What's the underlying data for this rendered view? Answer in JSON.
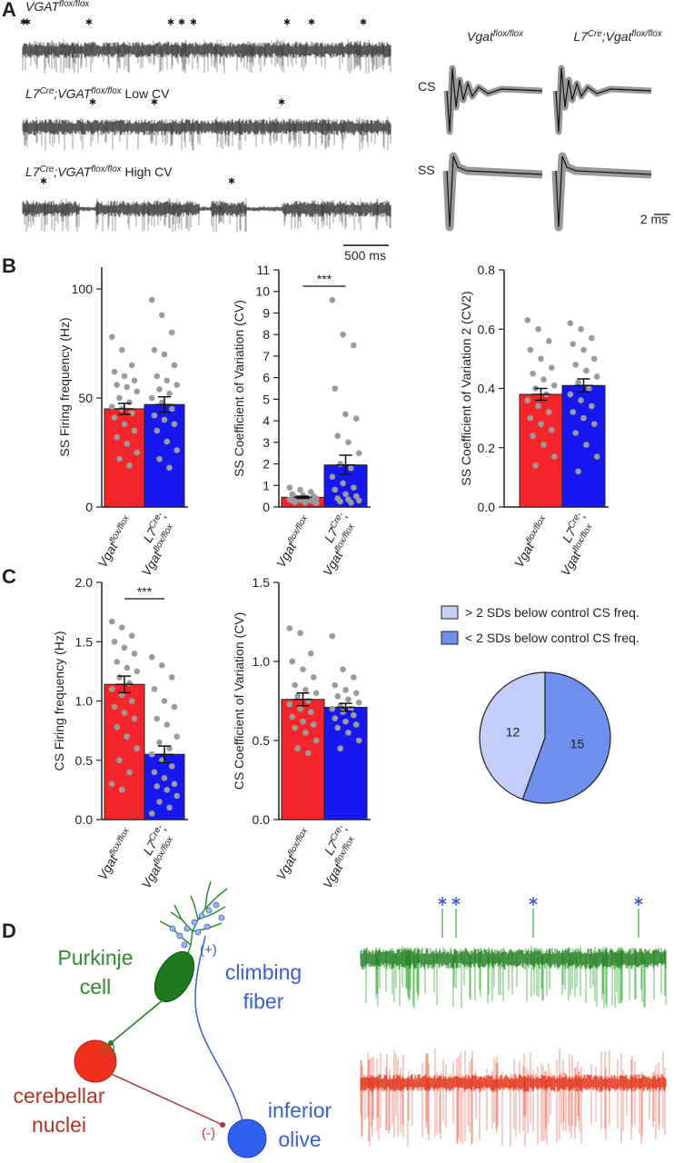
{
  "panel_a": {
    "label": "A",
    "traces": [
      {
        "label": [
          {
            "text": "VGAT",
            "italic": true
          },
          {
            "text": "flox/flox",
            "italic": true,
            "sup": true
          }
        ]
      },
      {
        "label": [
          {
            "text": "L7",
            "italic": true
          },
          {
            "text": "Cre",
            "italic": true,
            "sup": true
          },
          {
            "text": ";VGAT",
            "italic": true
          },
          {
            "text": "flox/flox",
            "italic": true,
            "sup": true
          },
          {
            "text": " Low CV"
          }
        ]
      },
      {
        "label": [
          {
            "text": "L7",
            "italic": true
          },
          {
            "text": "Cre",
            "italic": true,
            "sup": true
          },
          {
            "text": ";VGAT",
            "italic": true
          },
          {
            "text": "flox/flox",
            "italic": true,
            "sup": true
          },
          {
            "text": " High CV"
          }
        ]
      }
    ],
    "scale_bar": "500 ms",
    "waveform_columns": [
      [
        {
          "text": "Vgat",
          "italic": true
        },
        {
          "text": "flox/flox",
          "italic": true,
          "sup": true
        }
      ],
      [
        {
          "text": "L7",
          "italic": true
        },
        {
          "text": "Cre",
          "italic": true,
          "sup": true
        },
        {
          "text": ";Vgat",
          "italic": true
        },
        {
          "text": "flox/flox",
          "italic": true,
          "sup": true
        }
      ]
    ],
    "waveform_rows": [
      "CS",
      "SS"
    ],
    "waveform_scale_bar": "2 ms"
  },
  "panel_labels": {
    "b": "B",
    "c": "C",
    "d": "D"
  },
  "chart_data": [
    {
      "type": "bar",
      "ylabel": "SS Firing frequency (Hz)",
      "categories": [
        [
          [
            {
              "text": "Vgat",
              "italic": true
            },
            {
              "text": "flox/flox",
              "italic": true,
              "sup": true
            }
          ]
        ],
        [
          [
            {
              "text": "L7",
              "italic": true
            },
            {
              "text": "Cre",
              "italic": true,
              "sup": true
            },
            {
              "text": ";"
            }
          ],
          [
            {
              "text": "Vgat",
              "italic": true
            },
            {
              "text": "flox/flox",
              "italic": true,
              "sup": true
            }
          ]
        ]
      ],
      "values": [
        45,
        47
      ],
      "errors": [
        2.5,
        3.5
      ],
      "colors": [
        "#f5262b",
        "#1717f2"
      ],
      "points": [
        [
          78,
          72,
          65,
          62,
          60,
          58,
          56,
          55,
          53,
          50,
          48,
          46,
          45,
          43,
          41,
          38,
          35,
          32,
          29,
          25,
          22,
          19
        ],
        [
          95,
          88,
          80,
          72,
          70,
          65,
          60,
          58,
          56,
          54,
          52,
          50,
          48,
          45,
          42,
          40,
          38,
          35,
          30,
          26,
          22,
          18
        ]
      ],
      "ylim": [
        0,
        110
      ],
      "yticks": [
        0,
        50,
        100
      ]
    },
    {
      "type": "bar",
      "ylabel": "SS Coefficient of Variation (CV)",
      "categories": [
        [
          [
            {
              "text": "Vgat",
              "italic": true
            },
            {
              "text": "flox/flox",
              "italic": true,
              "sup": true
            }
          ]
        ],
        [
          [
            {
              "text": "L7",
              "italic": true
            },
            {
              "text": "Cre",
              "italic": true,
              "sup": true
            },
            {
              "text": ";"
            }
          ],
          [
            {
              "text": "Vgat",
              "italic": true
            },
            {
              "text": "flox/flox",
              "italic": true,
              "sup": true
            }
          ]
        ]
      ],
      "values": [
        0.45,
        1.95
      ],
      "errors": [
        0.05,
        0.45
      ],
      "colors": [
        "#f5262b",
        "#1717f2"
      ],
      "points": [
        [
          0.9,
          0.8,
          0.7,
          0.6,
          0.55,
          0.5,
          0.45,
          0.42,
          0.4,
          0.38,
          0.36,
          0.35,
          0.33,
          0.3,
          0.3,
          0.28,
          0.25,
          0.22,
          0.2,
          0.18
        ],
        [
          9.6,
          8,
          7.5,
          5.5,
          4.3,
          4.1,
          3.3,
          3,
          2.5,
          2,
          1.8,
          1.4,
          1.1,
          0.9,
          0.8,
          0.6,
          0.5,
          0.4,
          0.35,
          0.3,
          0.25,
          0.2
        ]
      ],
      "ylim": [
        0,
        11
      ],
      "yticks": [
        0,
        1,
        2,
        3,
        4,
        5,
        6,
        7,
        8,
        9,
        10,
        11
      ],
      "significance": "***"
    },
    {
      "type": "bar",
      "ylabel": "SS Coefficient of Variation 2 (CV2)",
      "categories": [
        [
          [
            {
              "text": "Vgat",
              "italic": true
            },
            {
              "text": "flox/flox",
              "italic": true,
              "sup": true
            }
          ]
        ],
        [
          [
            {
              "text": "L7",
              "italic": true
            },
            {
              "text": "Cre",
              "italic": true,
              "sup": true
            },
            {
              "text": ";"
            }
          ],
          [
            {
              "text": "Vgat",
              "italic": true
            },
            {
              "text": "flox/flox",
              "italic": true,
              "sup": true
            }
          ]
        ]
      ],
      "values": [
        0.38,
        0.41
      ],
      "errors": [
        0.02,
        0.022
      ],
      "colors": [
        "#f5262b",
        "#1717f2"
      ],
      "points": [
        [
          0.63,
          0.6,
          0.56,
          0.53,
          0.5,
          0.47,
          0.45,
          0.43,
          0.41,
          0.4,
          0.38,
          0.36,
          0.34,
          0.32,
          0.3,
          0.28,
          0.26,
          0.24,
          0.21,
          0.17,
          0.14
        ],
        [
          0.62,
          0.6,
          0.57,
          0.55,
          0.53,
          0.5,
          0.48,
          0.46,
          0.44,
          0.42,
          0.4,
          0.38,
          0.36,
          0.34,
          0.32,
          0.3,
          0.28,
          0.25,
          0.21,
          0.17,
          0.12
        ]
      ],
      "ylim": [
        0,
        0.8
      ],
      "yticks": [
        {
          "value": 0,
          "label": "0.0"
        },
        0.2,
        0.4,
        0.6,
        0.8
      ]
    },
    {
      "type": "bar",
      "ylabel": "CS Firing frequency (Hz)",
      "categories": [
        [
          [
            {
              "text": "Vgat",
              "italic": true
            },
            {
              "text": "flox/flox",
              "italic": true,
              "sup": true
            }
          ]
        ],
        [
          [
            {
              "text": "L7",
              "italic": true
            },
            {
              "text": "Cre",
              "italic": true,
              "sup": true
            },
            {
              "text": ";"
            }
          ],
          [
            {
              "text": "Vgat",
              "italic": true
            },
            {
              "text": "flox/flox",
              "italic": true,
              "sup": true
            }
          ]
        ]
      ],
      "values": [
        1.14,
        0.55
      ],
      "errors": [
        0.07,
        0.07
      ],
      "colors": [
        "#f5262b",
        "#1717f2"
      ],
      "points": [
        [
          1.67,
          1.62,
          1.55,
          1.5,
          1.45,
          1.4,
          1.33,
          1.28,
          1.25,
          1.2,
          1.15,
          1.1,
          1.05,
          1.0,
          0.95,
          0.9,
          0.85,
          0.78,
          0.7,
          0.6,
          0.5,
          0.4,
          0.3,
          0.25
        ],
        [
          1.37,
          1.3,
          1.2,
          1.1,
          1.0,
          0.95,
          0.85,
          0.8,
          0.7,
          0.65,
          0.6,
          0.55,
          0.5,
          0.45,
          0.4,
          0.35,
          0.3,
          0.28,
          0.25,
          0.2,
          0.15,
          0.1,
          0.05
        ]
      ],
      "ylim": [
        0,
        2
      ],
      "yticks": [
        {
          "value": 0,
          "label": "0.0"
        },
        0.5,
        {
          "value": 1,
          "label": "1.0"
        },
        1.5,
        {
          "value": 2,
          "label": "2.0"
        }
      ],
      "significance": "***"
    },
    {
      "type": "bar",
      "ylabel": "CS Coefficient of Variation (CV)",
      "categories": [
        [
          [
            {
              "text": "Vgat",
              "italic": true
            },
            {
              "text": "flox/flox",
              "italic": true,
              "sup": true
            }
          ]
        ],
        [
          [
            {
              "text": "L7",
              "italic": true
            },
            {
              "text": "Cre",
              "italic": true,
              "sup": true
            },
            {
              "text": ";"
            }
          ],
          [
            {
              "text": "Vgat",
              "italic": true
            },
            {
              "text": "flox/flox",
              "italic": true,
              "sup": true
            }
          ]
        ]
      ],
      "values": [
        0.76,
        0.71
      ],
      "errors": [
        0.04,
        0.025
      ],
      "colors": [
        "#f5262b",
        "#1717f2"
      ],
      "points": [
        [
          1.21,
          1.18,
          1.05,
          1.0,
          0.95,
          0.9,
          0.85,
          0.82,
          0.8,
          0.78,
          0.75,
          0.73,
          0.7,
          0.68,
          0.65,
          0.62,
          0.6,
          0.58,
          0.55,
          0.5,
          0.45,
          0.42
        ],
        [
          1.16,
          0.95,
          0.9,
          0.85,
          0.82,
          0.8,
          0.78,
          0.76,
          0.74,
          0.72,
          0.7,
          0.7,
          0.68,
          0.66,
          0.64,
          0.62,
          0.6,
          0.58,
          0.55,
          0.5,
          0.45
        ]
      ],
      "ylim": [
        0,
        1.5
      ],
      "yticks": [
        {
          "value": 0,
          "label": "0.0"
        },
        0.5,
        {
          "value": 1,
          "label": "1.0"
        },
        1.5
      ]
    },
    {
      "type": "pie",
      "labels": [
        "> 2 SDs below control CS freq.",
        "< 2 SDs below control CS freq."
      ],
      "values": [
        12,
        15
      ],
      "colors": [
        "#c3cdf7",
        "#7090f0"
      ]
    }
  ],
  "panel_d": {
    "purkinje": [
      "Purkinje",
      "cell"
    ],
    "climbing": [
      "climbing",
      "fiber"
    ],
    "nuclei": [
      "cerebellar",
      "nuclei"
    ],
    "olive": [
      "inferior",
      "olive"
    ],
    "plus": "(+)",
    "minus": "(-)"
  }
}
